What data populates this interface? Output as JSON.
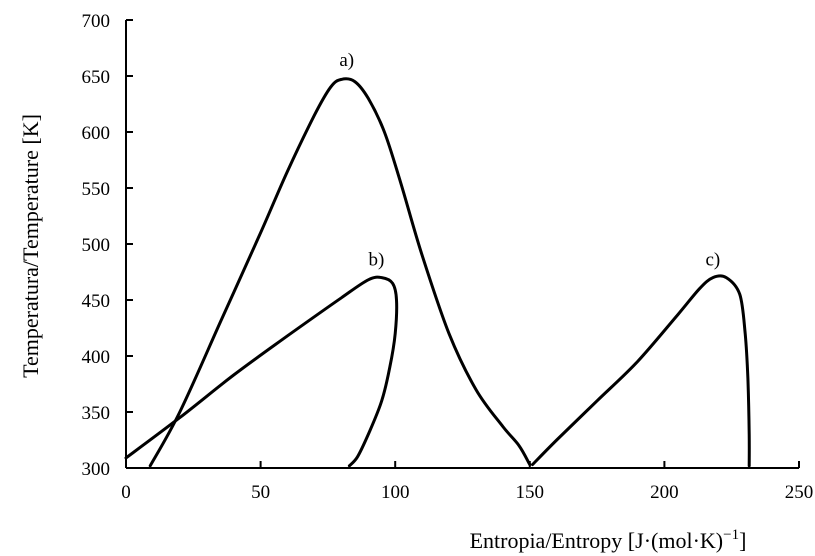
{
  "chart_data": {
    "type": "line",
    "xlabel": "Entropia/Entropy [J·(mol·K)",
    "xlabel_sup": "−1",
    "xlabel_end": "]",
    "ylabel": "Temperatura/Temperature [K]",
    "xlim": [
      0,
      250
    ],
    "ylim": [
      300,
      700
    ],
    "x_ticks": [
      0,
      50,
      100,
      150,
      200,
      250
    ],
    "y_ticks": [
      300,
      350,
      400,
      450,
      500,
      550,
      600,
      650,
      700
    ],
    "grid": false,
    "series": [
      {
        "name": "a)",
        "x": [
          9,
          20,
          35,
          50,
          60,
          70,
          76,
          80,
          85,
          90,
          96,
          102,
          110,
          120,
          130,
          140,
          146,
          150
        ],
        "y": [
          302,
          350,
          430,
          510,
          565,
          615,
          640,
          647,
          645,
          630,
          600,
          555,
          490,
          420,
          370,
          337,
          320,
          303
        ],
        "label_at": [
          82,
          659
        ]
      },
      {
        "name": "b)",
        "x": [
          0,
          20,
          40,
          60,
          80,
          90,
          95,
          99,
          100.5,
          100,
          98,
          95,
          90,
          86,
          83
        ],
        "y": [
          309,
          345,
          383,
          418,
          452,
          468,
          470,
          465,
          450,
          420,
          390,
          360,
          330,
          310,
          302
        ],
        "label_at": [
          93,
          481
        ]
      },
      {
        "name": "c)",
        "x": [
          151,
          160,
          175,
          190,
          205,
          213,
          218,
          223,
          228,
          230,
          231,
          231.5,
          231.5
        ],
        "y": [
          303,
          325,
          360,
          395,
          437,
          460,
          470,
          470,
          455,
          420,
          380,
          330,
          302
        ],
        "label_at": [
          218,
          481
        ]
      }
    ]
  }
}
